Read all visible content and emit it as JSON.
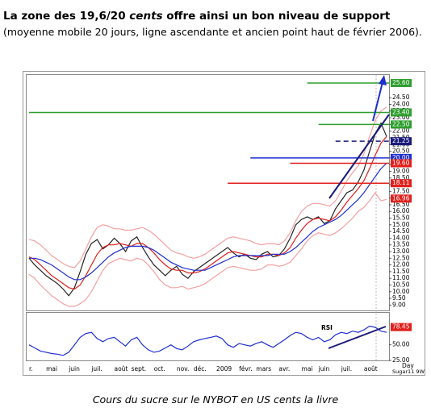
{
  "header": {
    "title_start": "La zone des 19,6/20 ",
    "title_emph": "cents",
    "title_end": " offre ainsi un bon niveau de support",
    "subtitle": "(moyenne mobile 20 jours, ligne ascendante et ancien point haut de février 2006).",
    "caption": "Cours du sucre sur le NYBOT en US cents la livre"
  },
  "chart_data": [
    {
      "type": "line",
      "ylim": [
        8.6,
        26.2
      ],
      "yticks": [
        {
          "value": 9,
          "label": "9.00"
        },
        {
          "value": 9.5,
          "label": "9.50"
        },
        {
          "value": 10,
          "label": "10.00"
        },
        {
          "value": 10.5,
          "label": "10.50"
        },
        {
          "value": 11,
          "label": "11.00"
        },
        {
          "value": 11.5,
          "label": "11.50"
        },
        {
          "value": 12,
          "label": "12.00"
        },
        {
          "value": 12.5,
          "label": "12.50"
        },
        {
          "value": 13,
          "label": "13.00"
        },
        {
          "value": 13.5,
          "label": "13.50"
        },
        {
          "value": 14,
          "label": "14.00"
        },
        {
          "value": 14.5,
          "label": "14.50"
        },
        {
          "value": 15,
          "label": "15.00"
        },
        {
          "value": 15.5,
          "label": "15.50"
        },
        {
          "value": 16,
          "label": "16.00"
        },
        {
          "value": 16.5,
          "label": "16.50"
        },
        {
          "value": 17,
          "label": "17.00"
        },
        {
          "value": 17.5,
          "label": "17.50"
        },
        {
          "value": 18,
          "label": "18.00"
        },
        {
          "value": 18.5,
          "label": "18.50"
        },
        {
          "value": 19,
          "label": "19.00"
        },
        {
          "value": 19.5,
          "label": "19.50"
        },
        {
          "value": 20,
          "label": "20.00"
        },
        {
          "value": 20.5,
          "label": "20.50"
        },
        {
          "value": 21,
          "label": "21.00"
        },
        {
          "value": 21.5,
          "label": "21.50"
        },
        {
          "value": 22,
          "label": "22.00"
        },
        {
          "value": 22.5,
          "label": "22.50"
        },
        {
          "value": 23,
          "label": "23.00"
        },
        {
          "value": 23.5,
          "label": "23.50"
        },
        {
          "value": 24,
          "label": "24.00"
        },
        {
          "value": 24.5,
          "label": "24.50"
        }
      ],
      "series": [
        {
          "color": "#f4a0a0",
          "values": [
            13.9,
            13.8,
            13.5,
            13.1,
            12.7,
            12.4,
            12.1,
            11.9,
            11.8,
            12.3,
            13.2,
            14.1,
            14.8,
            15.0,
            14.9,
            14.7,
            14.7,
            14.6,
            14.6,
            14.7,
            14.8,
            14.6,
            14.3,
            13.9,
            13.5,
            13.1,
            12.9,
            12.8,
            12.6,
            12.5,
            12.6,
            12.8,
            13.1,
            13.4,
            13.7,
            14.0,
            14.1,
            14.0,
            13.9,
            13.8,
            13.6,
            13.5,
            13.6,
            13.6,
            13.5,
            13.8,
            14.4,
            15.3,
            16.0,
            16.4,
            16.6,
            16.6,
            16.5,
            16.4,
            16.8,
            17.5,
            18.3,
            18.9,
            19.4,
            20.3,
            21.6,
            22.8,
            23.5,
            23.8
          ]
        },
        {
          "color": "#f4a0a0",
          "values": [
            11.3,
            11.0,
            10.5,
            10.1,
            9.7,
            9.4,
            9.1,
            8.9,
            8.9,
            9.1,
            9.4,
            10.0,
            10.8,
            11.6,
            12.1,
            12.3,
            12.5,
            12.4,
            12.3,
            12.5,
            12.4,
            12.0,
            11.5,
            10.9,
            10.5,
            10.3,
            10.3,
            10.4,
            10.2,
            10.3,
            10.4,
            10.6,
            10.9,
            11.2,
            11.5,
            11.8,
            11.9,
            11.8,
            11.7,
            11.6,
            11.6,
            11.7,
            12.0,
            12.0,
            11.9,
            12.0,
            12.2,
            12.7,
            13.2,
            13.8,
            14.2,
            14.4,
            14.3,
            14.2,
            14.4,
            14.7,
            15.1,
            15.5,
            16.0,
            16.3,
            16.8,
            17.4,
            16.8,
            16.9
          ]
        },
        {
          "color": "#222222",
          "values": [
            12.5,
            12.0,
            11.6,
            11.2,
            10.9,
            10.6,
            10.2,
            9.7,
            10.3,
            11.5,
            12.8,
            13.6,
            13.9,
            13.2,
            13.5,
            14.0,
            13.6,
            13.0,
            13.8,
            14.1,
            13.3,
            12.6,
            12.0,
            11.6,
            11.2,
            11.6,
            11.9,
            11.3,
            11.0,
            11.5,
            11.8,
            12.1,
            12.4,
            12.7,
            13.0,
            13.3,
            12.9,
            12.6,
            12.8,
            12.5,
            12.4,
            12.8,
            13.0,
            12.6,
            12.7,
            13.2,
            14.0,
            15.0,
            15.4,
            15.6,
            15.4,
            15.6,
            15.1,
            15.3,
            16.2,
            16.8,
            17.4,
            17.6,
            18.2,
            19.1,
            20.5,
            21.8,
            22.6,
            21.6
          ]
        },
        {
          "color": "#e0201c",
          "values": [
            12.6,
            12.4,
            12.0,
            11.6,
            11.2,
            10.9,
            10.6,
            10.3,
            10.2,
            10.5,
            11.2,
            12.0,
            12.8,
            13.3,
            13.5,
            13.5,
            13.6,
            13.5,
            13.4,
            13.6,
            13.6,
            13.3,
            12.9,
            12.4,
            12.0,
            11.7,
            11.6,
            11.6,
            11.4,
            11.4,
            11.5,
            11.7,
            12.0,
            12.3,
            12.6,
            12.9,
            13.0,
            12.9,
            12.8,
            12.7,
            12.6,
            12.6,
            12.8,
            12.8,
            12.7,
            12.9,
            13.3,
            14.0,
            14.6,
            15.1,
            15.4,
            15.5,
            15.4,
            15.3,
            15.6,
            16.1,
            16.7,
            17.2,
            17.7,
            18.3,
            19.2,
            20.2,
            21.1,
            21.6
          ]
        },
        {
          "color": "#1f2fd0",
          "values": [
            12.5,
            12.5,
            12.4,
            12.2,
            12.0,
            11.7,
            11.4,
            11.1,
            10.9,
            10.9,
            11.1,
            11.4,
            11.8,
            12.2,
            12.6,
            12.9,
            13.1,
            13.3,
            13.4,
            13.4,
            13.4,
            13.3,
            13.1,
            12.8,
            12.5,
            12.2,
            12.0,
            11.8,
            11.7,
            11.6,
            11.6,
            11.6,
            11.8,
            12.0,
            12.2,
            12.4,
            12.6,
            12.7,
            12.7,
            12.7,
            12.7,
            12.7,
            12.7,
            12.8,
            12.8,
            12.8,
            13.0,
            13.3,
            13.7,
            14.1,
            14.5,
            14.8,
            15.0,
            15.2,
            15.4,
            15.7,
            16.1,
            16.5,
            16.9,
            17.4,
            18.0,
            18.6,
            19.2,
            19.6
          ]
        }
      ],
      "levels": [
        {
          "value": 25.6,
          "label": "25.60",
          "color": "#2e9e2e",
          "start": 49
        },
        {
          "value": 23.4,
          "label": "23.40",
          "color": "#2e9e2e",
          "start": 0
        },
        {
          "value": 22.5,
          "label": "22.50",
          "color": "#2e9e2e",
          "start": 51
        },
        {
          "value": 21.25,
          "label": "21.25",
          "color": "#1a1a7a",
          "start": 54,
          "dash": true
        },
        {
          "value": 20,
          "label": "20.00",
          "color": "#1f2fd0",
          "start": 39
        },
        {
          "value": 19.6,
          "label": "19.60",
          "color": "#e0201c",
          "start": 46
        },
        {
          "value": 18.11,
          "label": "18.11",
          "color": "#e0201c",
          "start": 35
        },
        {
          "value": 16.96,
          "label": "16.96",
          "color": "#e0201c"
        }
      ]
    },
    {
      "type": "line",
      "categories": [
        "r.",
        null,
        null,
        "mai",
        null,
        null,
        null,
        "juin",
        null,
        null,
        null,
        "juil.",
        null,
        null,
        null,
        "août",
        null,
        null,
        "sept.",
        null,
        null,
        null,
        "oct.",
        null,
        null,
        null,
        "nov.",
        null,
        null,
        "déc.",
        null,
        null,
        null,
        "2009",
        null,
        null,
        null,
        "févr.",
        null,
        null,
        "mars",
        null,
        null,
        null,
        "avr.",
        null,
        null,
        null,
        "mai",
        null,
        null,
        "juin",
        null,
        null,
        null,
        "juil.",
        null,
        null,
        null,
        "août",
        null,
        null,
        null,
        null
      ],
      "x_label": "Day",
      "source": "Sugar11 9W",
      "ylim": [
        25,
        100
      ],
      "yticks": [
        {
          "value": 50,
          "label": "50.00"
        },
        {
          "value": 25,
          "label": "25.00"
        }
      ],
      "series": [
        {
          "name": "RSI",
          "color": "#1f2fd0",
          "values": [
            50,
            45,
            40,
            38,
            36,
            35,
            33,
            38,
            50,
            62,
            68,
            70,
            60,
            55,
            60,
            62,
            55,
            48,
            58,
            62,
            50,
            42,
            38,
            40,
            45,
            50,
            44,
            42,
            48,
            55,
            58,
            60,
            62,
            64,
            60,
            50,
            46,
            52,
            50,
            48,
            52,
            55,
            50,
            46,
            52,
            58,
            65,
            70,
            68,
            62,
            58,
            62,
            55,
            58,
            66,
            70,
            68,
            72,
            70,
            74,
            80,
            78,
            72,
            70
          ]
        }
      ],
      "levels": [
        {
          "value": 78.45,
          "label": "78.45",
          "color": "#e0201c"
        }
      ]
    }
  ]
}
